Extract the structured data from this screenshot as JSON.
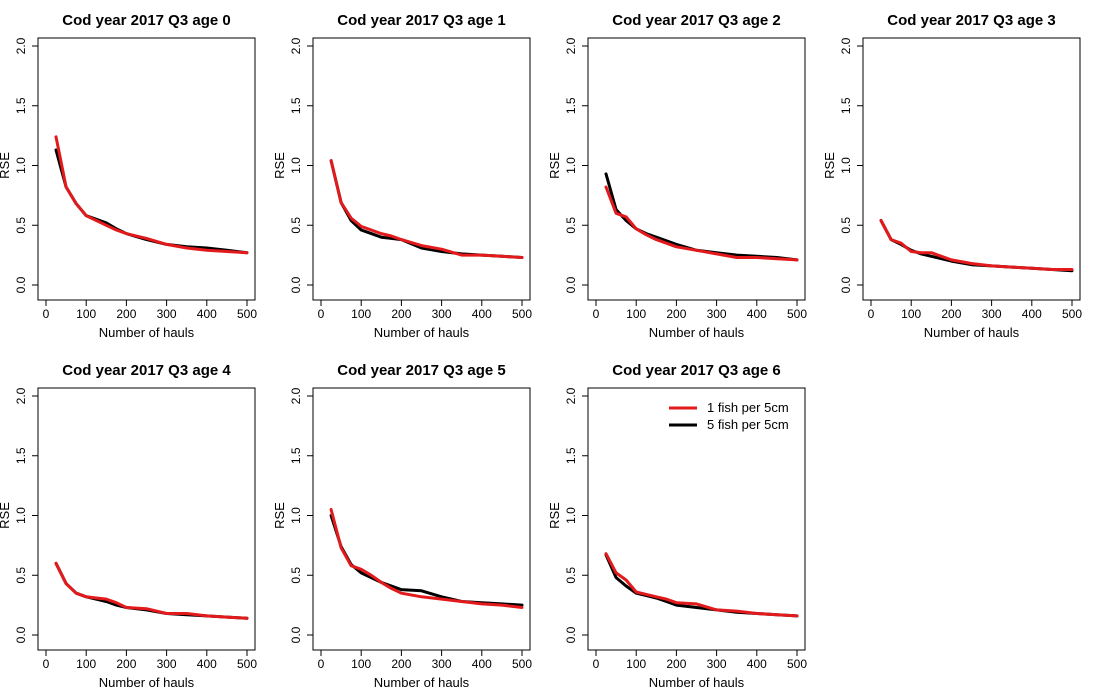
{
  "colors": {
    "series_1fish": "#e31a1c",
    "series_5fish": "#000000"
  },
  "chart_data": [
    {
      "type": "line",
      "title": "Cod year 2017 Q3 age 0",
      "xlabel": "Number of hauls",
      "ylabel": "RSE",
      "xlim": [
        0,
        500
      ],
      "ylim": [
        0,
        2
      ],
      "xticks": [
        "0",
        "100",
        "200",
        "300",
        "400",
        "500"
      ],
      "yticks": [
        "0.0",
        "0.5",
        "1.0",
        "1.5",
        "2.0"
      ],
      "x": [
        25,
        50,
        75,
        100,
        125,
        150,
        175,
        200,
        250,
        300,
        350,
        400,
        450,
        500
      ],
      "series": [
        {
          "name": "5 fish per 5cm",
          "color": "#000000",
          "values": [
            1.13,
            0.82,
            0.68,
            0.58,
            0.55,
            0.52,
            0.47,
            0.43,
            0.38,
            0.34,
            0.32,
            0.31,
            0.29,
            0.27
          ]
        },
        {
          "name": "1 fish per 5cm",
          "color": "#e31a1c",
          "values": [
            1.24,
            0.82,
            0.68,
            0.58,
            0.54,
            0.5,
            0.46,
            0.43,
            0.39,
            0.34,
            0.31,
            0.29,
            0.28,
            0.27
          ]
        }
      ]
    },
    {
      "type": "line",
      "title": "Cod year 2017 Q3 age 1",
      "xlabel": "Number of hauls",
      "ylabel": "RSE",
      "xlim": [
        0,
        500
      ],
      "ylim": [
        0,
        2
      ],
      "xticks": [
        "0",
        "100",
        "200",
        "300",
        "400",
        "500"
      ],
      "yticks": [
        "0.0",
        "0.5",
        "1.0",
        "1.5",
        "2.0"
      ],
      "x": [
        25,
        50,
        75,
        100,
        125,
        150,
        175,
        200,
        250,
        300,
        350,
        400,
        450,
        500
      ],
      "series": [
        {
          "name": "5 fish per 5cm",
          "color": "#000000",
          "values": [
            1.04,
            0.69,
            0.54,
            0.46,
            0.43,
            0.4,
            0.39,
            0.38,
            0.31,
            0.28,
            0.26,
            0.25,
            0.24,
            0.23
          ]
        },
        {
          "name": "1 fish per 5cm",
          "color": "#e31a1c",
          "values": [
            1.04,
            0.69,
            0.56,
            0.49,
            0.46,
            0.43,
            0.41,
            0.38,
            0.33,
            0.3,
            0.25,
            0.25,
            0.24,
            0.23
          ]
        }
      ]
    },
    {
      "type": "line",
      "title": "Cod year 2017 Q3 age 2",
      "xlabel": "Number of hauls",
      "ylabel": "RSE",
      "xlim": [
        0,
        500
      ],
      "ylim": [
        0,
        2
      ],
      "xticks": [
        "0",
        "100",
        "200",
        "300",
        "400",
        "500"
      ],
      "yticks": [
        "0.0",
        "0.5",
        "1.0",
        "1.5",
        "2.0"
      ],
      "x": [
        25,
        50,
        75,
        100,
        125,
        150,
        175,
        200,
        250,
        300,
        350,
        400,
        450,
        500
      ],
      "series": [
        {
          "name": "5 fish per 5cm",
          "color": "#000000",
          "values": [
            0.93,
            0.63,
            0.54,
            0.47,
            0.43,
            0.4,
            0.37,
            0.34,
            0.29,
            0.27,
            0.25,
            0.24,
            0.23,
            0.21
          ]
        },
        {
          "name": "1 fish per 5cm",
          "color": "#e31a1c",
          "values": [
            0.82,
            0.6,
            0.57,
            0.47,
            0.42,
            0.38,
            0.35,
            0.32,
            0.29,
            0.26,
            0.23,
            0.23,
            0.22,
            0.21
          ]
        }
      ]
    },
    {
      "type": "line",
      "title": "Cod year 2017 Q3 age 3",
      "xlabel": "Number of hauls",
      "ylabel": "RSE",
      "xlim": [
        0,
        500
      ],
      "ylim": [
        0,
        2
      ],
      "xticks": [
        "0",
        "100",
        "200",
        "300",
        "400",
        "500"
      ],
      "yticks": [
        "0.0",
        "0.5",
        "1.0",
        "1.5",
        "2.0"
      ],
      "x": [
        25,
        50,
        75,
        100,
        125,
        150,
        175,
        200,
        250,
        300,
        350,
        400,
        450,
        500
      ],
      "series": [
        {
          "name": "5 fish per 5cm",
          "color": "#000000",
          "values": [
            0.54,
            0.38,
            0.34,
            0.29,
            0.26,
            0.24,
            0.22,
            0.2,
            0.17,
            0.16,
            0.15,
            0.14,
            0.13,
            0.12
          ]
        },
        {
          "name": "1 fish per 5cm",
          "color": "#e31a1c",
          "values": [
            0.54,
            0.38,
            0.35,
            0.28,
            0.27,
            0.27,
            0.24,
            0.21,
            0.18,
            0.16,
            0.15,
            0.14,
            0.13,
            0.13
          ]
        }
      ]
    },
    {
      "type": "line",
      "title": "Cod year 2017 Q3 age 4",
      "xlabel": "Number of hauls",
      "ylabel": "RSE",
      "xlim": [
        0,
        500
      ],
      "ylim": [
        0,
        2
      ],
      "xticks": [
        "0",
        "100",
        "200",
        "300",
        "400",
        "500"
      ],
      "yticks": [
        "0.0",
        "0.5",
        "1.0",
        "1.5",
        "2.0"
      ],
      "x": [
        25,
        50,
        75,
        100,
        125,
        150,
        175,
        200,
        250,
        300,
        350,
        400,
        450,
        500
      ],
      "series": [
        {
          "name": "5 fish per 5cm",
          "color": "#000000",
          "values": [
            0.6,
            0.43,
            0.35,
            0.32,
            0.3,
            0.28,
            0.25,
            0.23,
            0.21,
            0.18,
            0.17,
            0.16,
            0.15,
            0.14
          ]
        },
        {
          "name": "1 fish per 5cm",
          "color": "#e31a1c",
          "values": [
            0.6,
            0.43,
            0.35,
            0.32,
            0.31,
            0.3,
            0.27,
            0.23,
            0.22,
            0.18,
            0.18,
            0.16,
            0.15,
            0.14
          ]
        }
      ]
    },
    {
      "type": "line",
      "title": "Cod year 2017 Q3 age 5",
      "xlabel": "Number of hauls",
      "ylabel": "RSE",
      "xlim": [
        0,
        500
      ],
      "ylim": [
        0,
        2
      ],
      "xticks": [
        "0",
        "100",
        "200",
        "300",
        "400",
        "500"
      ],
      "yticks": [
        "0.0",
        "0.5",
        "1.0",
        "1.5",
        "2.0"
      ],
      "x": [
        25,
        50,
        75,
        100,
        125,
        150,
        175,
        200,
        250,
        300,
        350,
        400,
        450,
        500
      ],
      "series": [
        {
          "name": "5 fish per 5cm",
          "color": "#000000",
          "values": [
            1.0,
            0.74,
            0.59,
            0.52,
            0.48,
            0.44,
            0.41,
            0.38,
            0.37,
            0.32,
            0.28,
            0.27,
            0.26,
            0.25
          ]
        },
        {
          "name": "1 fish per 5cm",
          "color": "#e31a1c",
          "values": [
            1.05,
            0.73,
            0.58,
            0.55,
            0.5,
            0.44,
            0.39,
            0.35,
            0.32,
            0.3,
            0.28,
            0.26,
            0.25,
            0.23
          ]
        }
      ]
    },
    {
      "type": "line",
      "title": "Cod year 2017 Q3 age 6",
      "xlabel": "Number of hauls",
      "ylabel": "RSE",
      "xlim": [
        0,
        500
      ],
      "ylim": [
        0,
        2
      ],
      "xticks": [
        "0",
        "100",
        "200",
        "300",
        "400",
        "500"
      ],
      "yticks": [
        "0.0",
        "0.5",
        "1.0",
        "1.5",
        "2.0"
      ],
      "legend": {
        "position": "top-right",
        "entries": [
          {
            "label": "1 fish per 5cm",
            "color": "#e31a1c"
          },
          {
            "label": "5 fish per 5cm",
            "color": "#000000"
          }
        ]
      },
      "x": [
        25,
        50,
        75,
        100,
        125,
        150,
        175,
        200,
        250,
        300,
        350,
        400,
        450,
        500
      ],
      "series": [
        {
          "name": "5 fish per 5cm",
          "color": "#000000",
          "values": [
            0.67,
            0.48,
            0.41,
            0.35,
            0.33,
            0.31,
            0.28,
            0.25,
            0.23,
            0.21,
            0.19,
            0.18,
            0.17,
            0.16
          ]
        },
        {
          "name": "1 fish per 5cm",
          "color": "#e31a1c",
          "values": [
            0.68,
            0.52,
            0.46,
            0.36,
            0.34,
            0.32,
            0.3,
            0.27,
            0.26,
            0.21,
            0.2,
            0.18,
            0.17,
            0.16
          ]
        }
      ]
    }
  ]
}
